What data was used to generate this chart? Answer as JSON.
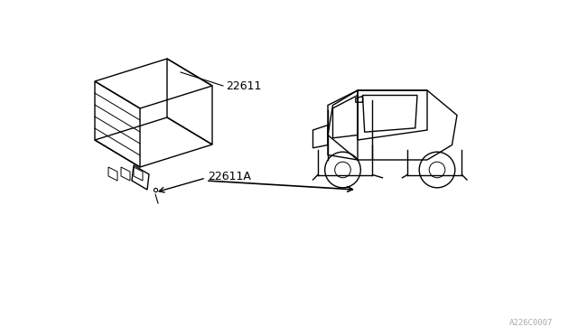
{
  "bg_color": "#ffffff",
  "line_color": "#000000",
  "label_color": "#000000",
  "watermark_color": "#aaaaaa",
  "label_22611": "22611",
  "label_22611A": "22611A",
  "watermark": "A226C0007",
  "figsize": [
    6.4,
    3.72
  ],
  "dpi": 100
}
